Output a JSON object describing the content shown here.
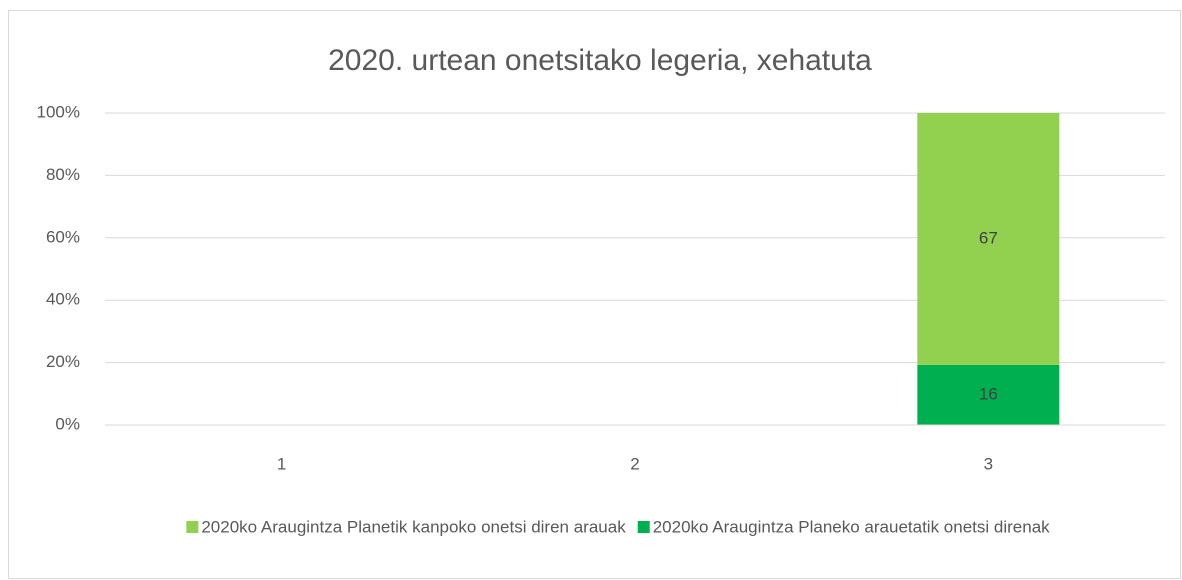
{
  "chart_data": {
    "type": "bar",
    "stacking": "percent",
    "title": "2020. urtean onetsitako legeria, xehatuta",
    "categories": [
      "1",
      "2",
      "3"
    ],
    "series": [
      {
        "name": "2020ko Araugintza Planetik kanpoko onetsi diren arauak",
        "color": "#92d050",
        "values": [
          null,
          null,
          67
        ]
      },
      {
        "name": "2020ko Araugintza Planeko arauetatik onetsi direnak",
        "color": "#00b050",
        "values": [
          null,
          null,
          16
        ]
      }
    ],
    "ylim": [
      0,
      100
    ],
    "yticks": [
      {
        "value": 0,
        "label": "0%"
      },
      {
        "value": 20,
        "label": "20%"
      },
      {
        "value": 40,
        "label": "40%"
      },
      {
        "value": 60,
        "label": "60%"
      },
      {
        "value": 80,
        "label": "80%"
      },
      {
        "value": 100,
        "label": "100%"
      }
    ],
    "grid": true,
    "legend": "bottom"
  }
}
